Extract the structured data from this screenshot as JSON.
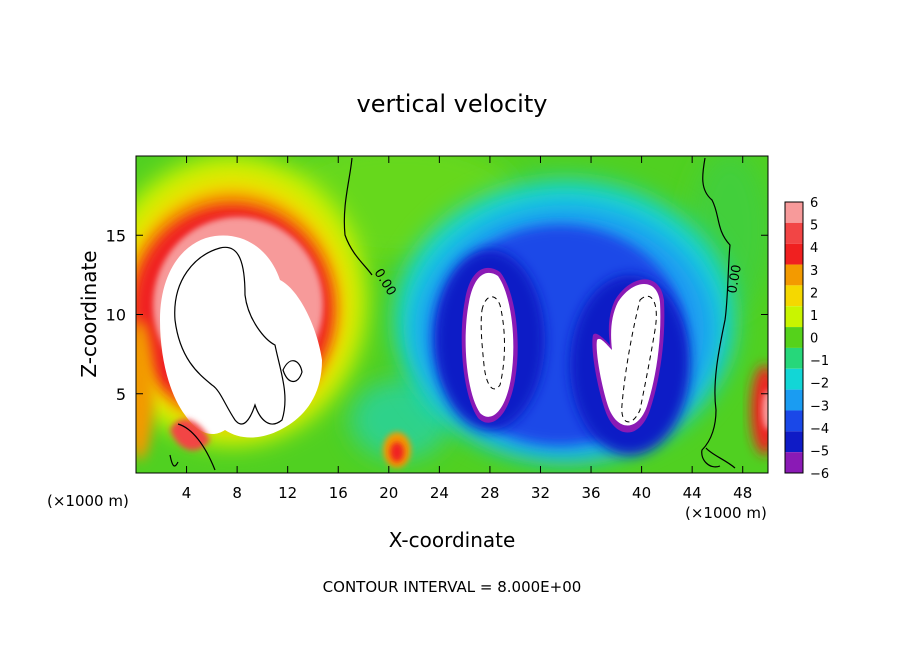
{
  "chart_data": {
    "type": "heatmap",
    "title": "vertical velocity",
    "xlabel": "X-coordinate",
    "ylabel": "Z-coordinate",
    "x_unit_left": "(×1000 m)",
    "x_unit_right": "(×1000 m)",
    "xlim": [
      0,
      50
    ],
    "ylim": [
      0,
      20
    ],
    "x_ticks": [
      4,
      8,
      12,
      16,
      20,
      24,
      28,
      32,
      36,
      40,
      44,
      48
    ],
    "y_ticks": [
      5,
      10,
      15
    ],
    "colorbar": {
      "levels": [
        6,
        5,
        4,
        3,
        2,
        1,
        0,
        -1,
        -2,
        -3,
        -4,
        -5,
        -6
      ],
      "labels": [
        "6",
        "5",
        "4",
        "3",
        "2",
        "1",
        "0",
        "−1",
        "−2",
        "−3",
        "−4",
        "−5",
        "−6"
      ],
      "colors": [
        "#f79a9a",
        "#f24545",
        "#f02020",
        "#f39a00",
        "#f5d800",
        "#c9f500",
        "#55d21b",
        "#26d77a",
        "#12d6d6",
        "#1a9cf2",
        "#1a48e8",
        "#0f1bc6",
        "#8a1ab5"
      ]
    },
    "above_range_color": "#ffffff",
    "below_range_color": "#ffffff",
    "contour_labels": [
      "0.00",
      "0.00"
    ],
    "footer": "CONTOUR INTERVAL = 8.000E+00",
    "features": [
      {
        "kind": "updraft",
        "x": 8.5,
        "z": 9.5,
        "value": 6
      },
      {
        "kind": "downdraft",
        "x": 28.5,
        "z": 9.0,
        "value": -6
      },
      {
        "kind": "downdraft",
        "x": 39.5,
        "z": 7.0,
        "value": -6
      },
      {
        "kind": "updraft",
        "x": 20.5,
        "z": 1.3,
        "value": 4
      }
    ]
  }
}
